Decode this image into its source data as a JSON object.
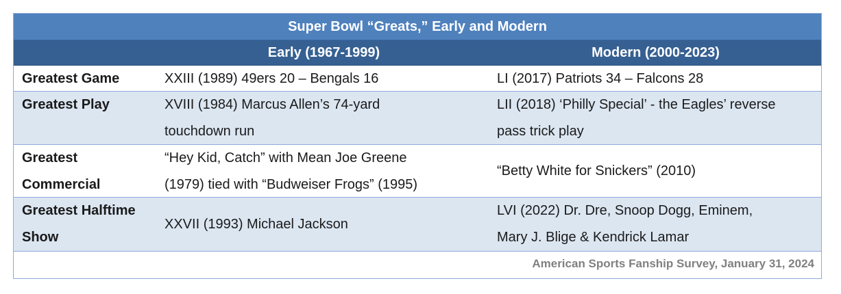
{
  "table": {
    "title": "Super Bowl “Greats,” Early and Modern",
    "headers": {
      "blank": "",
      "early": "Early (1967-1999)",
      "modern": "Modern (2000-2023)"
    },
    "rows": [
      {
        "label": [
          "Greatest Game"
        ],
        "early": [
          "XXIII (1989) 49ers 20 – Bengals 16"
        ],
        "modern": [
          "LI (2017) Patriots 34 – Falcons 28"
        ]
      },
      {
        "label": [
          "Greatest Play"
        ],
        "early": [
          "XVIII (1984) Marcus Allen’s 74-yard",
          "touchdown run"
        ],
        "modern": [
          "LII (2018) ‘Philly Special’ - the Eagles’ reverse",
          "pass trick play"
        ]
      },
      {
        "label": [
          "Greatest",
          "Commercial"
        ],
        "early": [
          "“Hey Kid, Catch” with Mean Joe Greene",
          "(1979) tied with “Budweiser Frogs” (1995)"
        ],
        "modern": [
          "“Betty White for Snickers” (2010)"
        ]
      },
      {
        "label": [
          "Greatest Halftime",
          "Show"
        ],
        "early": [
          "XXVII (1993) Michael Jackson"
        ],
        "modern": [
          "LVI (2022) Dr. Dre, Snoop Dogg, Eminem,",
          "Mary J. Blige & Kendrick Lamar"
        ]
      }
    ],
    "source": "American Sports Fanship Survey, January 31, 2024"
  }
}
